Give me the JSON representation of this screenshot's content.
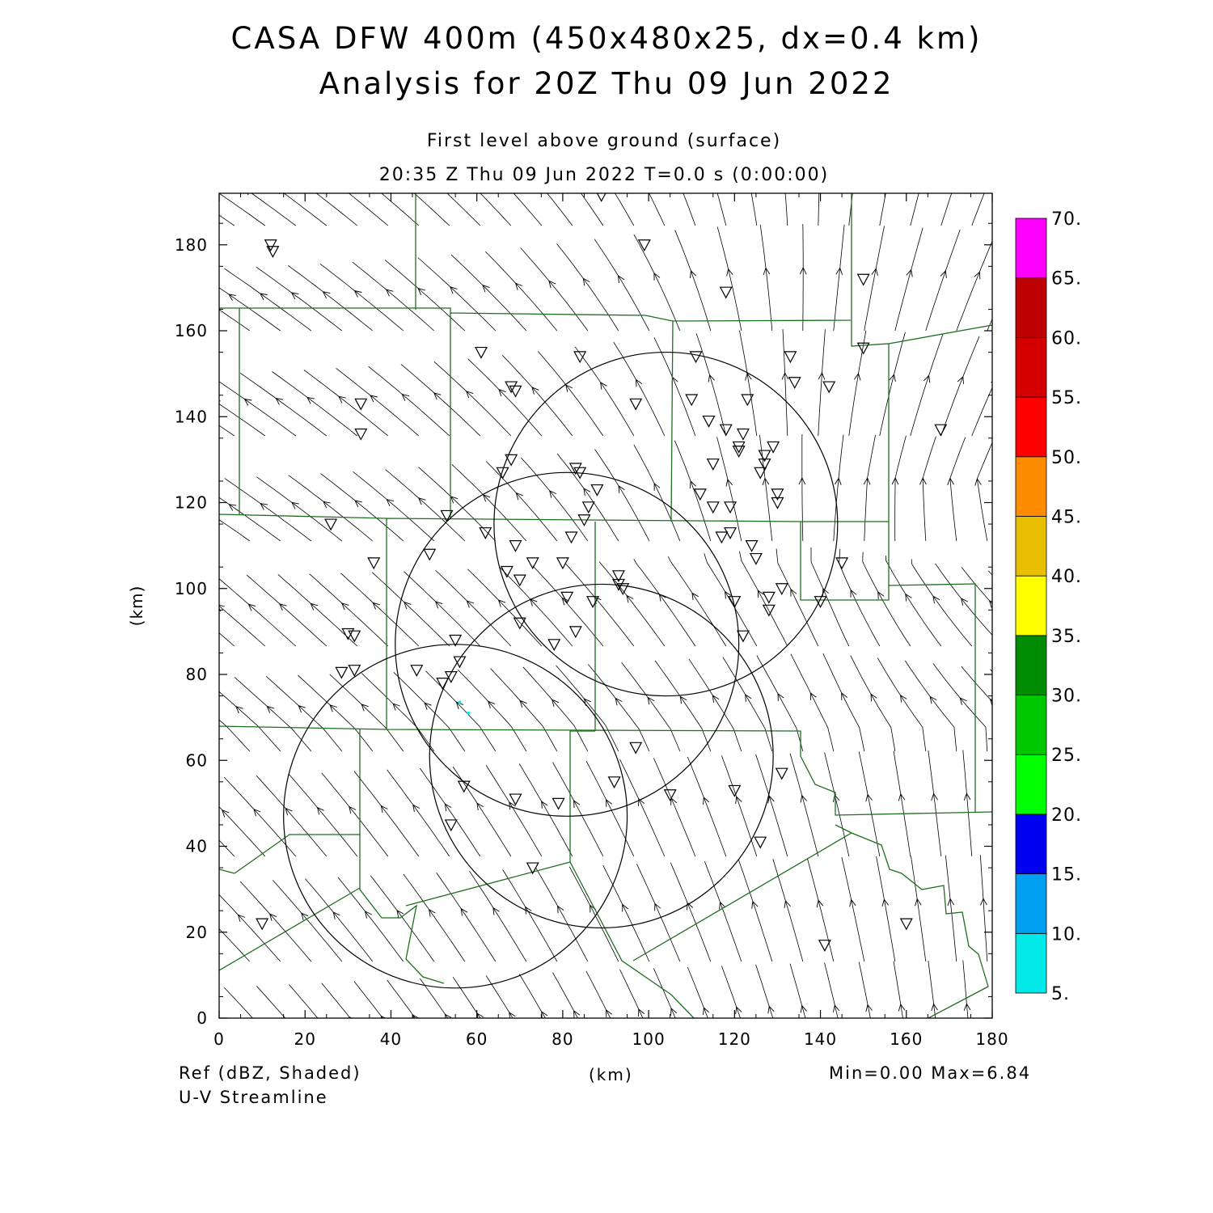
{
  "title": {
    "line1": "CASA DFW 400m (450x480x25, dx=0.4 km)",
    "line2": "Analysis for 20Z Thu 09 Jun 2022"
  },
  "subtitle": {
    "level": "First level above ground (surface)",
    "time": "20:35 Z Thu 09 Jun 2022    T=0.0 s (0:00:00)"
  },
  "footer": {
    "field1": "Ref (dBZ, Shaded)",
    "field2": "U-V Streamline",
    "xunit": "(km)",
    "minmax": "Min=0.00 Max=6.84"
  },
  "axes": {
    "ylabel": "(km)",
    "xlim": [
      0,
      180
    ],
    "ylim": [
      0,
      192
    ],
    "xticks": [
      0,
      20,
      40,
      60,
      80,
      100,
      120,
      140,
      160,
      180
    ],
    "yticks": [
      0,
      20,
      40,
      60,
      80,
      100,
      120,
      140,
      160,
      180
    ]
  },
  "colorbar": {
    "levels": [
      "5.",
      "10.",
      "15.",
      "20.",
      "25.",
      "30.",
      "35.",
      "40.",
      "45.",
      "50.",
      "55.",
      "60.",
      "65.",
      "70."
    ],
    "colors": [
      "#00e8e8",
      "#009ef0",
      "#0000f0",
      "#00ff00",
      "#00c800",
      "#008c00",
      "#ffff00",
      "#e8be00",
      "#ff8c00",
      "#ff0000",
      "#d40000",
      "#be0000",
      "#ff00ff"
    ]
  },
  "colors": {
    "county_lines": "#1f6e1f",
    "streamlines": "#000000",
    "radar_rings": "#000000"
  },
  "map_data": {
    "radar_range_rings": [
      {
        "center_km": [
          55,
          47
        ],
        "radius_km": 40
      },
      {
        "center_km": [
          81,
          87
        ],
        "radius_km": 40
      },
      {
        "center_km": [
          89,
          61
        ],
        "radius_km": 40
      },
      {
        "center_km": [
          104,
          115
        ],
        "radius_km": 40
      }
    ],
    "station_markers_km": [
      [
        12,
        180
      ],
      [
        12.5,
        178.5
      ],
      [
        33,
        143
      ],
      [
        33,
        136
      ],
      [
        26,
        115
      ],
      [
        36,
        106
      ],
      [
        30,
        89.5
      ],
      [
        31.5,
        89
      ],
      [
        28.5,
        80.5
      ],
      [
        31.5,
        81
      ],
      [
        46,
        81
      ],
      [
        52,
        78
      ],
      [
        54,
        79.5
      ],
      [
        55,
        88
      ],
      [
        56,
        83
      ],
      [
        57,
        54
      ],
      [
        54,
        45
      ],
      [
        62,
        113
      ],
      [
        66,
        127
      ],
      [
        67,
        104
      ],
      [
        68,
        130
      ],
      [
        69,
        110
      ],
      [
        70,
        102
      ],
      [
        68,
        147
      ],
      [
        69,
        146
      ],
      [
        61,
        155
      ],
      [
        73,
        106
      ],
      [
        70,
        92
      ],
      [
        78,
        87
      ],
      [
        80,
        106
      ],
      [
        81,
        98
      ],
      [
        82,
        112
      ],
      [
        83,
        90
      ],
      [
        83,
        128
      ],
      [
        84,
        127
      ],
      [
        84,
        154
      ],
      [
        85,
        116
      ],
      [
        86,
        119
      ],
      [
        87,
        97
      ],
      [
        88,
        123
      ],
      [
        89,
        191.5
      ],
      [
        93,
        103
      ],
      [
        93,
        101
      ],
      [
        94,
        100
      ],
      [
        97,
        63
      ],
      [
        97,
        143
      ],
      [
        99,
        180
      ],
      [
        92,
        55
      ],
      [
        105,
        52
      ],
      [
        110,
        144
      ],
      [
        111,
        154
      ],
      [
        112,
        122
      ],
      [
        114,
        139
      ],
      [
        115,
        129
      ],
      [
        115,
        119
      ],
      [
        117,
        112
      ],
      [
        118,
        137
      ],
      [
        119,
        119
      ],
      [
        119,
        113
      ],
      [
        118,
        169
      ],
      [
        120,
        97
      ],
      [
        121,
        133
      ],
      [
        121,
        132
      ],
      [
        122,
        136
      ],
      [
        122,
        89
      ],
      [
        120,
        53
      ],
      [
        123,
        144
      ],
      [
        124,
        110
      ],
      [
        125,
        107
      ],
      [
        126,
        127
      ],
      [
        127,
        131
      ],
      [
        127,
        129
      ],
      [
        128,
        98
      ],
      [
        128,
        95
      ],
      [
        129,
        133
      ],
      [
        130,
        120
      ],
      [
        130,
        122
      ],
      [
        131,
        100
      ],
      [
        131,
        57
      ],
      [
        126,
        41
      ],
      [
        133,
        154
      ],
      [
        134,
        148
      ],
      [
        142,
        147
      ],
      [
        140,
        97
      ],
      [
        145,
        106
      ],
      [
        150,
        172
      ],
      [
        150,
        156
      ],
      [
        160,
        22
      ],
      [
        168,
        137
      ],
      [
        141,
        17
      ],
      [
        10,
        22
      ],
      [
        73,
        35
      ],
      [
        69,
        51
      ],
      [
        79,
        50
      ],
      [
        49,
        108
      ],
      [
        53,
        117
      ]
    ],
    "active_echo_points_km": [
      [
        56,
        73.5
      ],
      [
        58,
        71
      ]
    ]
  }
}
